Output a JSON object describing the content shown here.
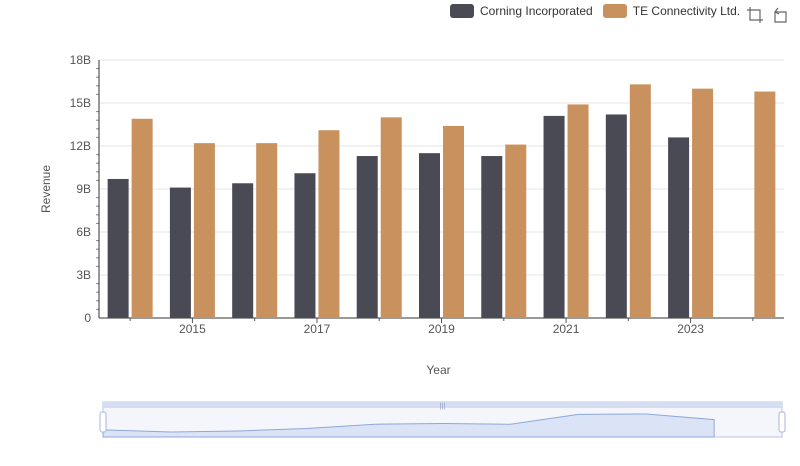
{
  "colors": {
    "corning": "#4a4a54",
    "te": "#c8915e",
    "grid": "#e6e6e6",
    "axis": "#333333",
    "zoom_fill": "#dbe4f7",
    "zoom_border": "#b8c5e6",
    "zoom_line": "#8fa7d9"
  },
  "toolbar": {
    "icons": [
      "zoom-icon",
      "restore-icon"
    ]
  },
  "chart_data": {
    "type": "bar",
    "title": "",
    "xlabel": "Year",
    "ylabel": "Revenue",
    "ylim": [
      0,
      18000000000
    ],
    "yticks": [
      0,
      3000000000,
      6000000000,
      9000000000,
      12000000000,
      15000000000,
      18000000000
    ],
    "ytick_labels": [
      "0",
      "3B",
      "6B",
      "9B",
      "12B",
      "15B",
      "18B"
    ],
    "categories": [
      "2014",
      "2015",
      "2016",
      "2017",
      "2018",
      "2019",
      "2020",
      "2021",
      "2022",
      "2023",
      "2024"
    ],
    "xtick_labels": [
      "2015",
      "2017",
      "2019",
      "2021",
      "2023"
    ],
    "legend_position": "top-right",
    "grid": true,
    "series": [
      {
        "name": "Corning Incorporated",
        "values": [
          9700000000,
          9100000000,
          9400000000,
          10100000000,
          11300000000,
          11500000000,
          11300000000,
          14100000000,
          14200000000,
          12600000000,
          null
        ]
      },
      {
        "name": "TE Connectivity Ltd.",
        "values": [
          13900000000,
          12200000000,
          12200000000,
          13100000000,
          14000000000,
          13400000000,
          12100000000,
          14900000000,
          16300000000,
          16000000000,
          15800000000
        ]
      }
    ],
    "dataZoom": {
      "start_percent": 0,
      "end_percent": 100
    }
  }
}
